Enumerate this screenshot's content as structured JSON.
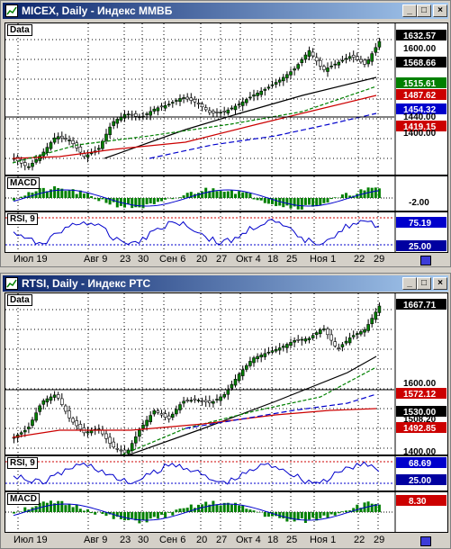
{
  "windows": [
    {
      "title": "MICEX, Daily - Индекс ММВБ",
      "data_label": "Data",
      "macd_label": "MACD",
      "rsi_label": "RSI, 9",
      "price_labels": [
        {
          "text": "1632.57",
          "style": "black"
        },
        {
          "text": "1600.00",
          "style": "plain"
        },
        {
          "text": "1568.66",
          "style": "black"
        },
        {
          "text": "1515.61",
          "style": "green"
        },
        {
          "text": "1487.62",
          "style": "red"
        },
        {
          "text": "1454.32",
          "style": "blue"
        },
        {
          "text": "1440.00",
          "style": "plain"
        },
        {
          "text": "1419.15",
          "style": "red"
        },
        {
          "text": "1400.00",
          "style": "plain"
        }
      ],
      "macd_labels": [
        {
          "text": "-2.00",
          "style": "plain"
        }
      ],
      "rsi_labels": [
        {
          "text": "75.19",
          "style": "blue"
        },
        {
          "text": "25.00",
          "style": "navy"
        }
      ]
    },
    {
      "title": "RTSI, Daily - Индекс РТС",
      "data_label": "Data",
      "macd_label": "MACD",
      "rsi_label": "RSI, 9",
      "price_labels": [
        {
          "text": "1667.71",
          "style": "black"
        },
        {
          "text": "1600.00",
          "style": "plain"
        },
        {
          "text": "1572.12",
          "style": "red"
        },
        {
          "text": "1530.00",
          "style": "black"
        },
        {
          "text": "1508.20",
          "style": "plain"
        },
        {
          "text": "1492.85",
          "style": "red"
        },
        {
          "text": "1400.00",
          "style": "plain"
        }
      ],
      "rsi_labels": [
        {
          "text": "68.69",
          "style": "blue"
        },
        {
          "text": "25.00",
          "style": "navy"
        }
      ],
      "macd_labels": [
        {
          "text": "8.30",
          "style": "red"
        }
      ]
    }
  ],
  "x_axis_labels": [
    "Июл 19",
    "Авг 9",
    "23",
    "30",
    "Сен 6",
    "20",
    "27",
    "Окт 4",
    "18",
    "25",
    "Ноя 1",
    "22",
    "29"
  ],
  "title_buttons": {
    "minimize": "_",
    "maximize": "□",
    "close": "×"
  },
  "colors": {
    "titlebar_start": "#0a246a",
    "titlebar_end": "#a6caf0",
    "bull": "#008000",
    "bear": "#000000",
    "ma_red": "#cc0000",
    "ma_blue": "#0000cc",
    "ma_green": "#008000"
  }
}
